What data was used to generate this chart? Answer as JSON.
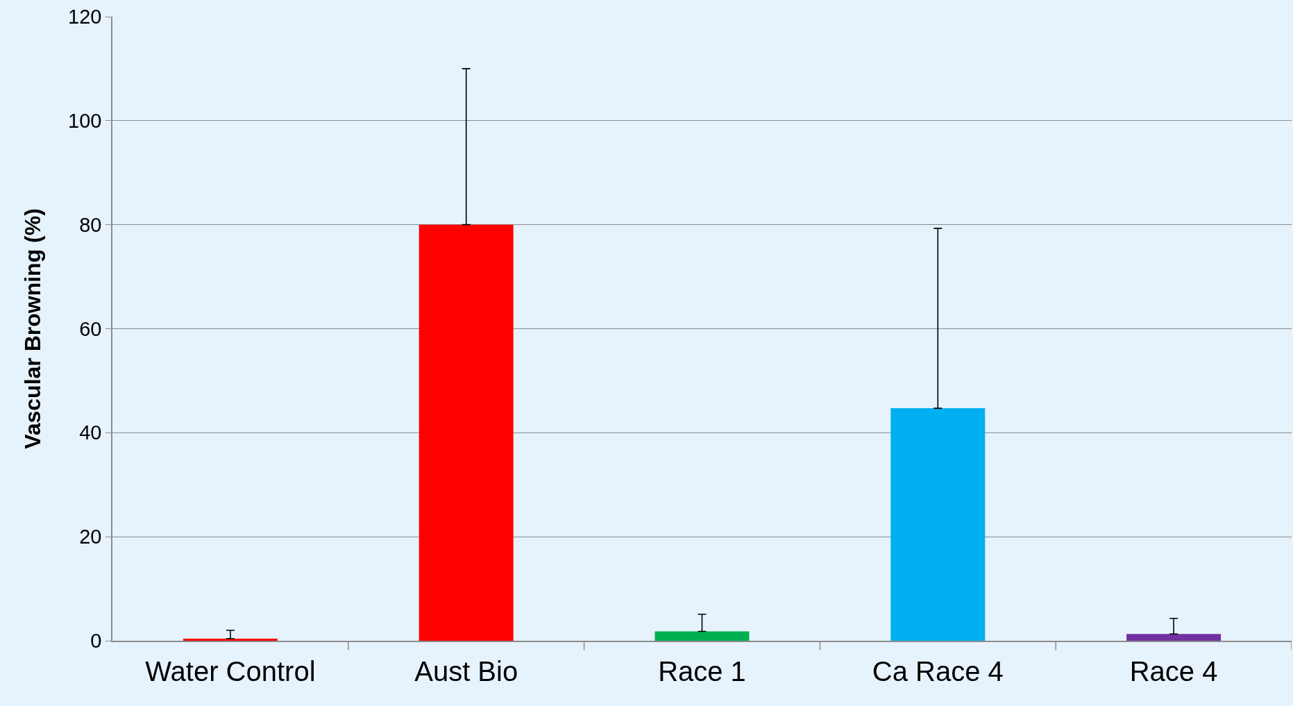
{
  "chart_data": {
    "type": "bar",
    "ylabel": "Vascular Browning (%)",
    "categories": [
      "Water Control",
      "Aust Bio",
      "Race 1",
      "Ca Race 4",
      "Race 4"
    ],
    "values": [
      0.4,
      80,
      1.8,
      44.7,
      1.3
    ],
    "colors": [
      "#ff0000",
      "#ff0000",
      "#00b050",
      "#00b0f0",
      "#7030a0"
    ],
    "errors": [
      [
        0.4,
        2.0
      ],
      [
        80,
        110
      ],
      [
        1.8,
        5.1
      ],
      [
        44.7,
        79.3
      ],
      [
        1.3,
        4.3
      ]
    ],
    "ylim": [
      0,
      120
    ],
    "yticks": [
      0,
      20,
      40,
      60,
      80,
      100,
      120
    ],
    "grid": "y"
  }
}
